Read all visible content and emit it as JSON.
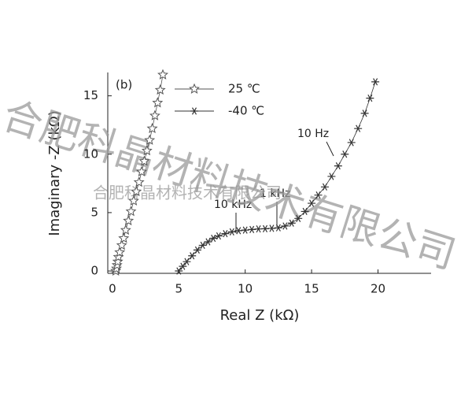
{
  "chart_data": {
    "type": "scatter",
    "x_label": "Real Z (kΩ)",
    "y_label": "Imaginary -Z (kΩ)",
    "xlim": [
      -0.35,
      24
    ],
    "ylim": [
      -0.2,
      17
    ],
    "xticks": [
      0,
      5,
      10,
      15,
      20
    ],
    "yticks": [
      0,
      5,
      10,
      15
    ],
    "series": [
      {
        "name": "25 ℃",
        "color": "#555555",
        "marker": "star",
        "x": [
          0.25,
          0.3,
          0.35,
          0.4,
          0.45,
          0.55,
          0.7,
          0.85,
          1.0,
          1.2,
          1.4,
          1.6,
          1.8,
          2.0,
          2.2,
          2.4,
          2.6,
          2.8,
          3.0,
          3.2,
          3.4,
          3.6,
          3.8
        ],
        "values": [
          0,
          0.2,
          0.5,
          0.8,
          1.2,
          1.6,
          2.2,
          2.8,
          3.5,
          4.3,
          5.1,
          6.0,
          6.8,
          7.6,
          8.5,
          9.4,
          10.3,
          11.2,
          12.2,
          13.3,
          14.4,
          15.5,
          16.8
        ]
      },
      {
        "name": "-40 ℃",
        "color": "#333333",
        "marker": "asterisk",
        "x": [
          5.0,
          5.3,
          5.6,
          6.0,
          6.4,
          6.8,
          7.2,
          7.6,
          8.0,
          8.5,
          9.0,
          9.5,
          10.0,
          10.5,
          11.0,
          11.5,
          12.0,
          12.5,
          13.0,
          13.5,
          14.0,
          14.5,
          15.0,
          15.5,
          16.0,
          16.5,
          17.0,
          17.5,
          18.0,
          18.5,
          19.0,
          19.4,
          19.8
        ],
        "values": [
          0,
          0.4,
          0.8,
          1.3,
          1.8,
          2.2,
          2.5,
          2.8,
          3.0,
          3.2,
          3.35,
          3.45,
          3.5,
          3.55,
          3.6,
          3.62,
          3.65,
          3.7,
          3.85,
          4.1,
          4.5,
          5.1,
          5.8,
          6.5,
          7.2,
          8.1,
          9.0,
          10.0,
          11.0,
          12.2,
          13.5,
          14.8,
          16.2
        ]
      }
    ],
    "annotations": [
      "(b)",
      "10 Hz",
      "1 kHz",
      "10 kHz"
    ],
    "watermarks": [
      "合肥科晶材料技术有限公司",
      "合肥科晶材料技术有限公司"
    ]
  }
}
